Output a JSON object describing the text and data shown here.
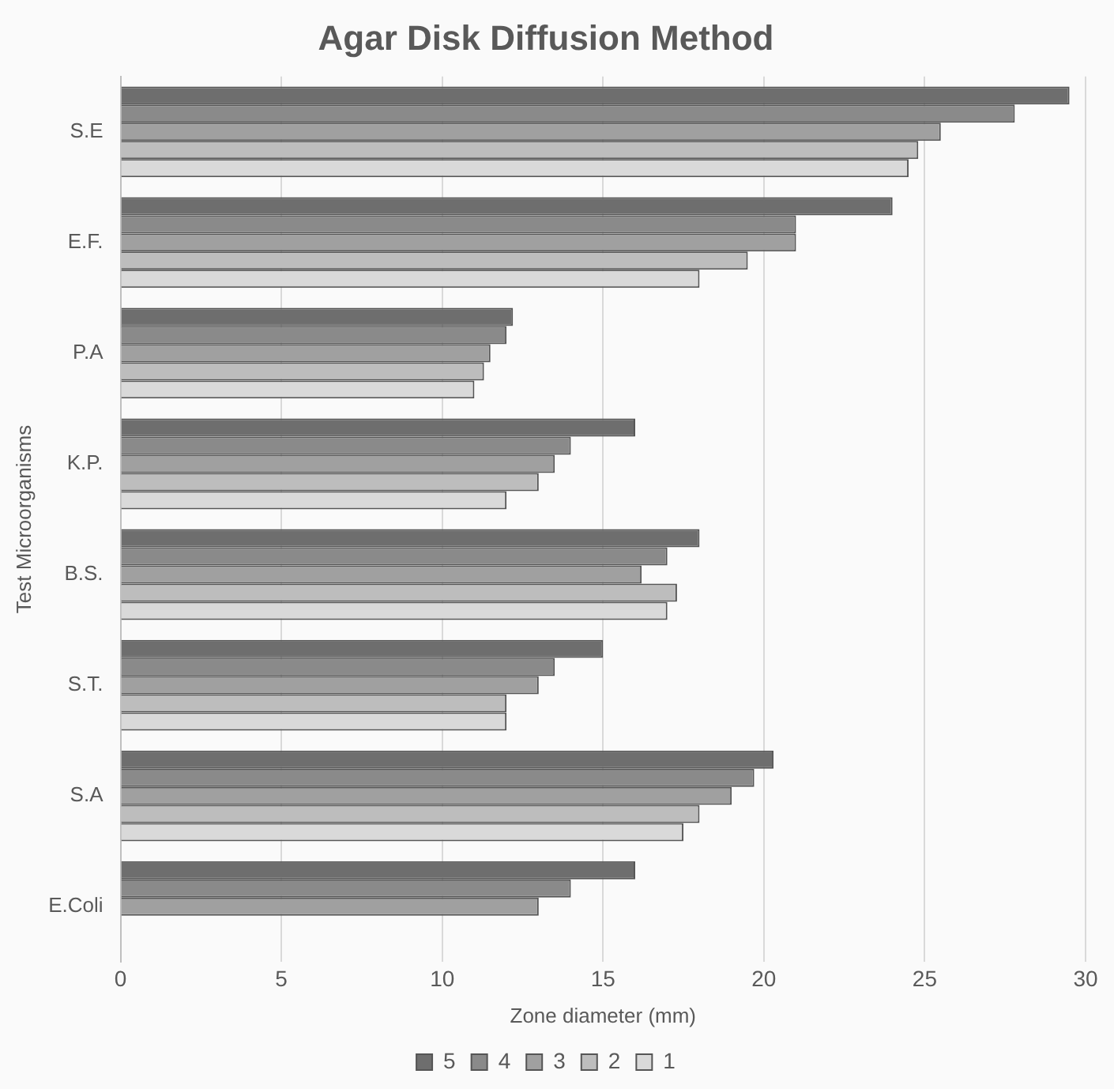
{
  "chart_data": {
    "type": "bar",
    "orientation": "horizontal",
    "title": "Agar Disk Diffusion Method",
    "xlabel": "Zone diameter (mm)",
    "ylabel": "Test Microorganisms",
    "categories": [
      "S.E",
      "E.F.",
      "P.A",
      "K.P.",
      "B.S.",
      "S.T.",
      "S.A",
      "E.Coli"
    ],
    "series": [
      {
        "name": "5",
        "color": "#6e6e6e",
        "values": [
          29.5,
          24,
          12.2,
          16,
          18,
          15,
          20.3,
          16
        ]
      },
      {
        "name": "4",
        "color": "#8a8a8a",
        "values": [
          27.8,
          21,
          12,
          14,
          17,
          13.5,
          19.7,
          14
        ]
      },
      {
        "name": "3",
        "color": "#a0a0a0",
        "values": [
          25.5,
          21,
          11.5,
          13.5,
          16.2,
          13,
          19,
          13
        ]
      },
      {
        "name": "2",
        "color": "#bdbdbd",
        "values": [
          24.8,
          19.5,
          11.3,
          13,
          17.3,
          12,
          18,
          0
        ]
      },
      {
        "name": "1",
        "color": "#d9d9d9",
        "values": [
          24.5,
          18,
          11,
          12,
          17,
          12,
          17.5,
          0
        ]
      }
    ],
    "xlim": [
      0,
      30
    ],
    "xticks": [
      0,
      5,
      10,
      15,
      20,
      25,
      30
    ],
    "grid": "x",
    "legend": "bottom"
  }
}
